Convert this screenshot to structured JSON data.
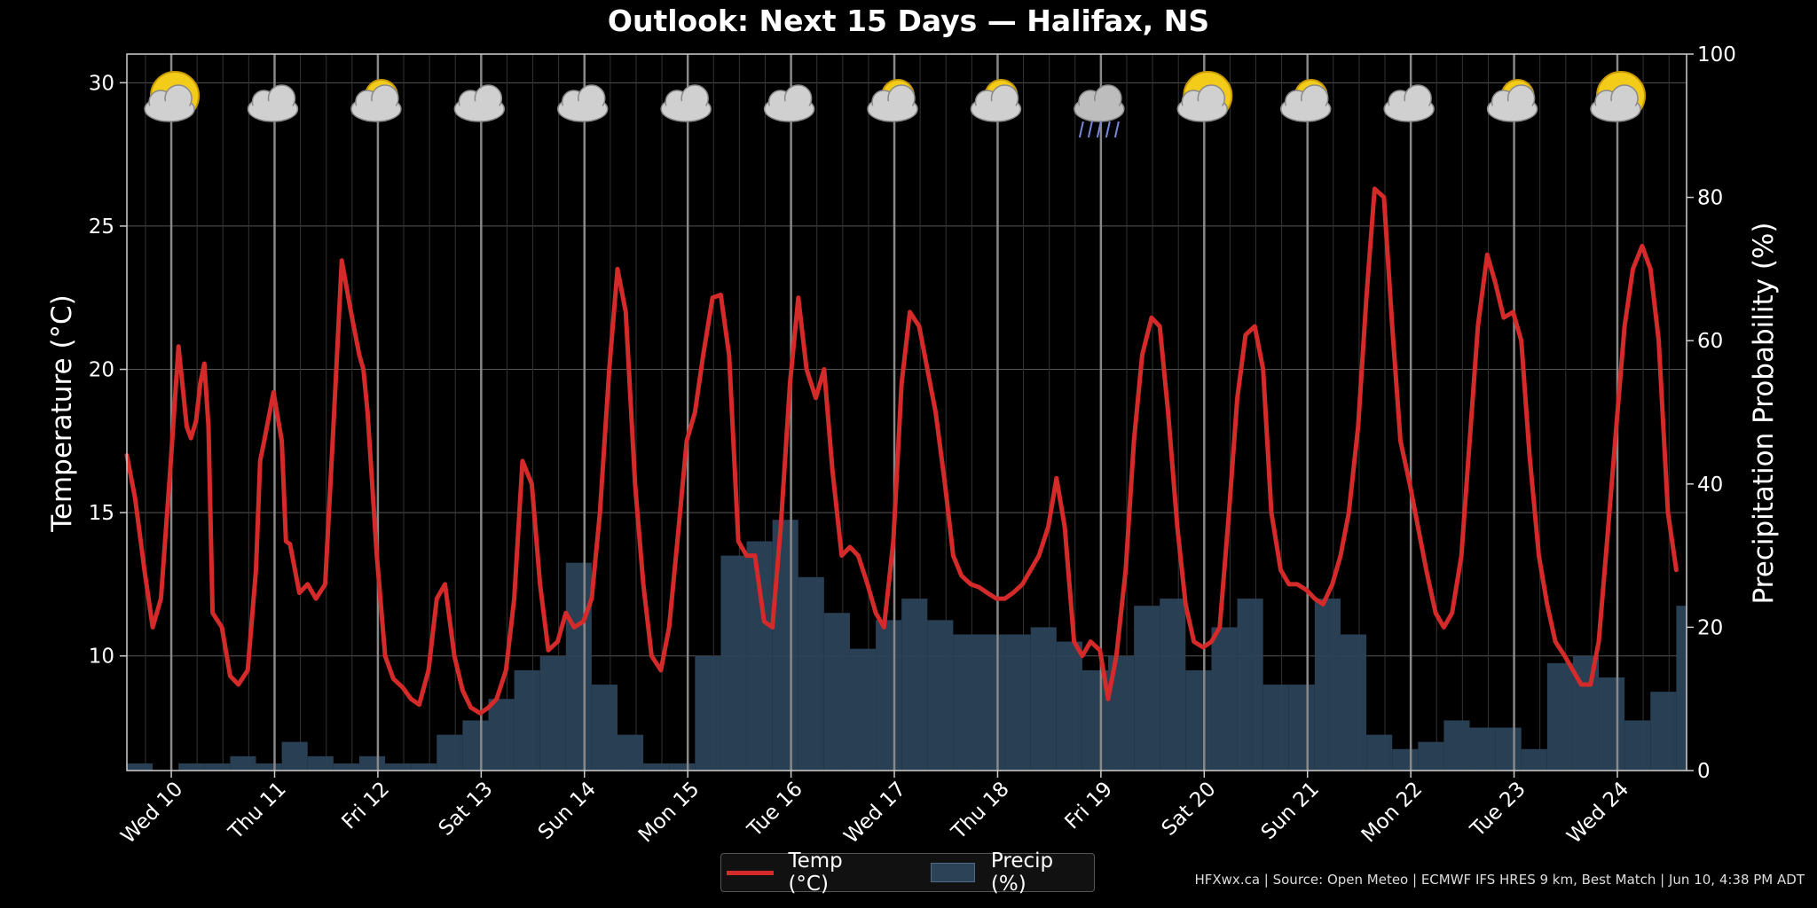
{
  "chart_data": {
    "type": "line",
    "title": "Outlook: Next 15 Days — Halifax, NS",
    "ylabel": "Temperature (°C)",
    "y2label": "Precipitation Probability (%)",
    "ylim": [
      6.0,
      31.0
    ],
    "y2lim": [
      0,
      100
    ],
    "yticks": [
      10,
      15,
      20,
      25,
      30
    ],
    "y2ticks": [
      0,
      20,
      40,
      60,
      80,
      100
    ],
    "x_range_days": [
      0,
      15.1
    ],
    "day_labels": [
      "Wed 10",
      "Thu 11",
      "Fri 12",
      "Sat 13",
      "Sun 14",
      "Mon 15",
      "Tue 16",
      "Wed 17",
      "Thu 18",
      "Fri 19",
      "Sat 20",
      "Sun 21",
      "Mon 22",
      "Tue 23",
      "Wed 24"
    ],
    "weather_icons": [
      "sun-cloud-icon",
      "cloud-icon",
      "sun-cloud-icon",
      "cloud-icon",
      "cloud-icon",
      "cloud-icon",
      "cloud-icon",
      "sun-cloud-icon",
      "sun-cloud-icon",
      "rain-cloud-icon",
      "sun-cloud-icon",
      "sun-cloud-icon",
      "cloud-icon",
      "sun-cloud-icon",
      "sun-cloud-icon"
    ],
    "grid": true,
    "legend_position": "bottom-center",
    "series": [
      {
        "name": "Temp (°C)",
        "color": "#d42a2a",
        "x": [
          0,
          0.08,
          0.17,
          0.25,
          0.33,
          0.42,
          0.5,
          0.58,
          0.62,
          0.67,
          0.71,
          0.75,
          0.79,
          0.83,
          0.92,
          1.0,
          1.08,
          1.17,
          1.25,
          1.29,
          1.33,
          1.42,
          1.5,
          1.54,
          1.58,
          1.67,
          1.75,
          1.83,
          1.92,
          2.0,
          2.08,
          2.17,
          2.25,
          2.29,
          2.33,
          2.42,
          2.5,
          2.58,
          2.67,
          2.75,
          2.83,
          2.92,
          3.0,
          3.08,
          3.17,
          3.25,
          3.33,
          3.42,
          3.5,
          3.58,
          3.67,
          3.75,
          3.83,
          3.92,
          4.0,
          4.08,
          4.17,
          4.25,
          4.33,
          4.42,
          4.5,
          4.58,
          4.67,
          4.75,
          4.83,
          4.92,
          5.0,
          5.08,
          5.17,
          5.25,
          5.33,
          5.42,
          5.5,
          5.58,
          5.67,
          5.75,
          5.83,
          5.92,
          6.0,
          6.08,
          6.17,
          6.25,
          6.33,
          6.42,
          6.5,
          6.58,
          6.67,
          6.75,
          6.83,
          6.92,
          7.0,
          7.08,
          7.17,
          7.25,
          7.33,
          7.42,
          7.5,
          7.58,
          7.67,
          7.75,
          7.83,
          7.92,
          8.0,
          8.08,
          8.17,
          8.25,
          8.33,
          8.42,
          8.5,
          8.58,
          8.67,
          8.75,
          8.83,
          8.92,
          9.0,
          9.08,
          9.17,
          9.25,
          9.33,
          9.42,
          9.5,
          9.58,
          9.67,
          9.75,
          9.83,
          9.92,
          10.0,
          10.08,
          10.17,
          10.25,
          10.33,
          10.42,
          10.5,
          10.58,
          10.67,
          10.75,
          10.83,
          10.92,
          11.0,
          11.08,
          11.17,
          11.25,
          11.33,
          11.42,
          11.5,
          11.58,
          11.67,
          11.75,
          11.83,
          11.92,
          12.0,
          12.08,
          12.17,
          12.25,
          12.33,
          12.42,
          12.5,
          12.58,
          12.67,
          12.75,
          12.83,
          12.92,
          13.0,
          13.08,
          13.17,
          13.25,
          13.33,
          13.42,
          13.5,
          13.58,
          13.67,
          13.75,
          13.83,
          13.92,
          14.0,
          14.08,
          14.17,
          14.25,
          14.33,
          14.42,
          14.5,
          14.58,
          14.67,
          14.75,
          14.83,
          14.92,
          15.0
        ],
        "values": [
          17,
          15.5,
          13.0,
          11.0,
          12.0,
          16.5,
          20.8,
          18.0,
          17.6,
          18.2,
          19.5,
          20.2,
          18.0,
          11.5,
          11.0,
          9.3,
          9.0,
          9.5,
          13.0,
          16.8,
          17.5,
          19.2,
          17.5,
          14.0,
          13.9,
          12.2,
          12.5,
          12.0,
          12.5,
          18.0,
          23.8,
          22.0,
          20.5,
          20.0,
          18.5,
          13.5,
          10.0,
          9.2,
          8.9,
          8.5,
          8.3,
          9.5,
          12.0,
          12.5,
          10.0,
          8.8,
          8.2,
          8.0,
          8.2,
          8.5,
          9.5,
          12.0,
          16.8,
          16.0,
          12.5,
          10.2,
          10.5,
          11.5,
          11.0,
          11.2,
          12.0,
          15.0,
          20.0,
          23.5,
          22.0,
          16.0,
          12.5,
          10.0,
          9.5,
          11.0,
          14.0,
          17.5,
          18.5,
          20.5,
          22.5,
          22.6,
          20.5,
          14.0,
          13.5,
          13.5,
          11.2,
          11.0,
          14.5,
          19.5,
          22.5,
          20.0,
          19.0,
          20.0,
          16.5,
          13.5,
          13.8,
          13.5,
          12.5,
          11.5,
          11.0,
          14.0,
          19.5,
          22.0,
          21.5,
          20.0,
          18.5,
          16.0,
          13.5,
          12.8,
          12.5,
          12.4,
          12.2,
          12.0,
          12.0,
          12.2,
          12.5,
          13.0,
          13.5,
          14.5,
          16.2,
          14.5,
          10.5,
          10.0,
          10.5,
          10.2,
          8.5,
          10.0,
          13.0,
          17.5,
          20.5,
          21.8,
          21.5,
          18.5,
          14.5,
          11.8,
          10.5,
          10.3,
          10.5,
          11.0,
          15.0,
          19.0,
          21.2,
          21.5,
          20.0,
          15.0,
          13.0,
          12.5,
          12.5,
          12.3,
          12.0,
          11.8,
          12.5,
          13.5,
          15.0,
          18.0,
          22.5,
          26.3,
          26.0,
          21.5,
          17.5,
          16.0,
          14.5,
          13.0,
          11.5,
          11.0,
          11.5,
          13.5,
          17.5,
          21.5,
          24.0,
          23.0,
          21.8,
          22.0,
          21.0,
          17.0,
          13.5,
          11.8,
          10.5,
          10.0,
          9.5,
          9.0,
          9.0,
          10.5,
          14.0,
          18.0,
          21.5,
          23.5,
          24.3,
          23.5,
          21.0,
          15.0,
          13.0
        ]
      },
      {
        "name": "Precip (%)",
        "color": "#2b4257",
        "x": [
          0,
          0.25,
          0.5,
          0.75,
          1.0,
          1.25,
          1.5,
          1.75,
          2.0,
          2.25,
          2.5,
          2.75,
          3.0,
          3.25,
          3.5,
          3.75,
          4.0,
          4.25,
          4.5,
          4.75,
          5.0,
          5.25,
          5.5,
          5.75,
          6.0,
          6.25,
          6.5,
          6.75,
          7.0,
          7.25,
          7.5,
          7.75,
          8.0,
          8.25,
          8.5,
          8.75,
          9.0,
          9.25,
          9.5,
          9.75,
          10.0,
          10.25,
          10.5,
          10.75,
          11.0,
          11.25,
          11.5,
          11.75,
          12.0,
          12.25,
          12.5,
          12.75,
          13.0,
          13.25,
          13.5,
          13.75,
          14.0,
          14.25,
          14.5,
          14.75,
          15.0
        ],
        "values": [
          1,
          0,
          1,
          1,
          2,
          1,
          4,
          2,
          1,
          2,
          1,
          1,
          5,
          7,
          10,
          14,
          16,
          29,
          12,
          5,
          1,
          1,
          16,
          30,
          32,
          35,
          27,
          22,
          17,
          21,
          24,
          21,
          19,
          19,
          19,
          20,
          18,
          14,
          16,
          23,
          24,
          14,
          20,
          24,
          12,
          12,
          24,
          19,
          5,
          3,
          4,
          7,
          6,
          6,
          3,
          15,
          16,
          13,
          7,
          11,
          23
        ]
      }
    ]
  },
  "legend": {
    "temp_label": "Temp (°C)",
    "precip_label": "Precip (%)"
  },
  "footer": {
    "source": "HFXwx.ca | Source: Open Meteo | ECMWF IFS HRES 9 km, Best Match | Jun 10, 4:38 PM ADT"
  }
}
